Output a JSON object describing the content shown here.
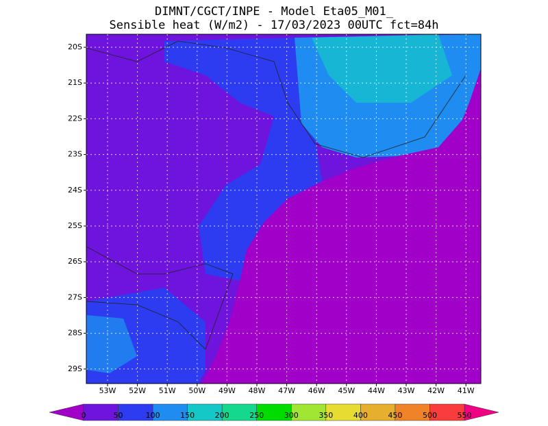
{
  "title": [
    "DIMNT/CGCT/INPE -  Model Eta05_M01_",
    "Sensible heat (W/m2) -  17/03/2023 00UTC fct=84h"
  ],
  "latitude_labels": [
    "20S",
    "21S",
    "22S",
    "23S",
    "24S",
    "25S",
    "26S",
    "27S",
    "28S",
    "29S"
  ],
  "longitude_labels": [
    "53W",
    "52W",
    "51W",
    "50W",
    "49W",
    "48W",
    "47W",
    "46W",
    "45W",
    "44W",
    "43W",
    "42W",
    "41W"
  ],
  "colorbar": {
    "ticks": [
      0,
      50,
      100,
      150,
      200,
      250,
      300,
      350,
      400,
      450,
      500,
      550
    ],
    "below_color": "#a000c8",
    "above_color": "#f00082",
    "colors": [
      "#6e14dc",
      "#2d3cf0",
      "#1e8cf0",
      "#14c8c8",
      "#14d88c",
      "#00dc00",
      "#a0e632",
      "#e6dc32",
      "#e6af2d",
      "#f08228",
      "#fa3c3c"
    ]
  }
}
